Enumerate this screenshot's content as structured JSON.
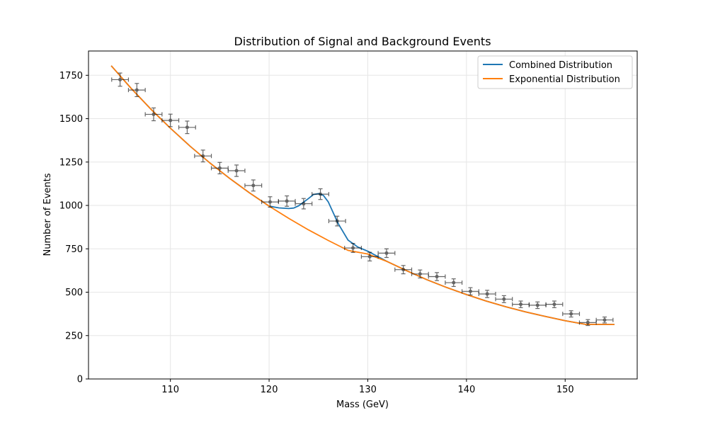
{
  "colors": {
    "combined": "#1f77b4",
    "exponential": "#ff7f0e",
    "data_points": "#000000",
    "grid": "#e6e6e6"
  },
  "chart_data": {
    "type": "line",
    "title": "Distribution of Signal and Background Events",
    "xlabel": "Mass (GeV)",
    "ylabel": "Number of Events",
    "xlim": [
      101.7,
      157.3
    ],
    "ylim": [
      0,
      1890
    ],
    "xticks": [
      110,
      120,
      130,
      140,
      150
    ],
    "yticks": [
      0,
      250,
      500,
      750,
      1000,
      1250,
      1500,
      1750
    ],
    "grid": true,
    "legend_position": "upper right",
    "series": [
      {
        "name": "Combined Distribution",
        "color": "#1f77b4",
        "x": [
          104,
          106,
          108,
          110,
          112,
          114,
          116,
          118,
          120,
          121,
          122,
          122.5,
          123,
          124,
          124.5,
          125,
          125.5,
          126,
          127,
          128,
          129,
          130,
          132,
          134,
          136,
          138,
          140,
          142,
          144,
          146,
          148,
          150,
          152,
          155
        ],
        "y": [
          1805,
          1676,
          1556,
          1445,
          1341,
          1245,
          1156,
          1073,
          996,
          986,
          982,
          985,
          998,
          1040,
          1063,
          1068,
          1058,
          1020,
          895,
          800,
          760,
          736,
          676,
          622,
          572,
          527,
          486,
          449,
          416,
          386,
          360,
          336,
          315,
          314
        ]
      },
      {
        "name": "Exponential Distribution",
        "color": "#ff7f0e",
        "x": [
          104,
          106,
          108,
          110,
          112,
          114,
          116,
          118,
          120,
          122,
          124,
          126,
          128,
          130,
          132,
          134,
          136,
          138,
          140,
          142,
          144,
          146,
          148,
          150,
          152,
          155
        ],
        "y": [
          1805,
          1676,
          1556,
          1445,
          1341,
          1245,
          1156,
          1073,
          996,
          925,
          859,
          798,
          741,
          720,
          676,
          622,
          572,
          527,
          486,
          449,
          416,
          386,
          360,
          336,
          315,
          314
        ]
      }
    ],
    "data_points": {
      "x": [
        104.9,
        106.6,
        108.3,
        110.0,
        111.7,
        113.3,
        115.0,
        116.7,
        118.4,
        120.1,
        121.8,
        123.5,
        125.2,
        126.9,
        128.5,
        130.2,
        131.9,
        133.6,
        135.3,
        137.0,
        138.7,
        140.4,
        142.1,
        143.8,
        145.5,
        147.2,
        148.9,
        150.6,
        152.3,
        154.0
      ],
      "y": [
        1725,
        1665,
        1525,
        1490,
        1450,
        1285,
        1215,
        1200,
        1115,
        1020,
        1025,
        1010,
        1065,
        910,
        755,
        705,
        725,
        630,
        605,
        590,
        555,
        505,
        490,
        460,
        430,
        425,
        430,
        375,
        325,
        340
      ],
      "x_err": 0.85,
      "y_err": [
        38,
        38,
        37,
        36,
        36,
        34,
        33,
        33,
        32,
        30,
        30,
        30,
        31,
        28,
        26,
        25,
        25,
        24,
        23,
        23,
        22,
        21,
        21,
        20,
        19,
        19,
        19,
        18,
        17,
        17
      ]
    }
  }
}
